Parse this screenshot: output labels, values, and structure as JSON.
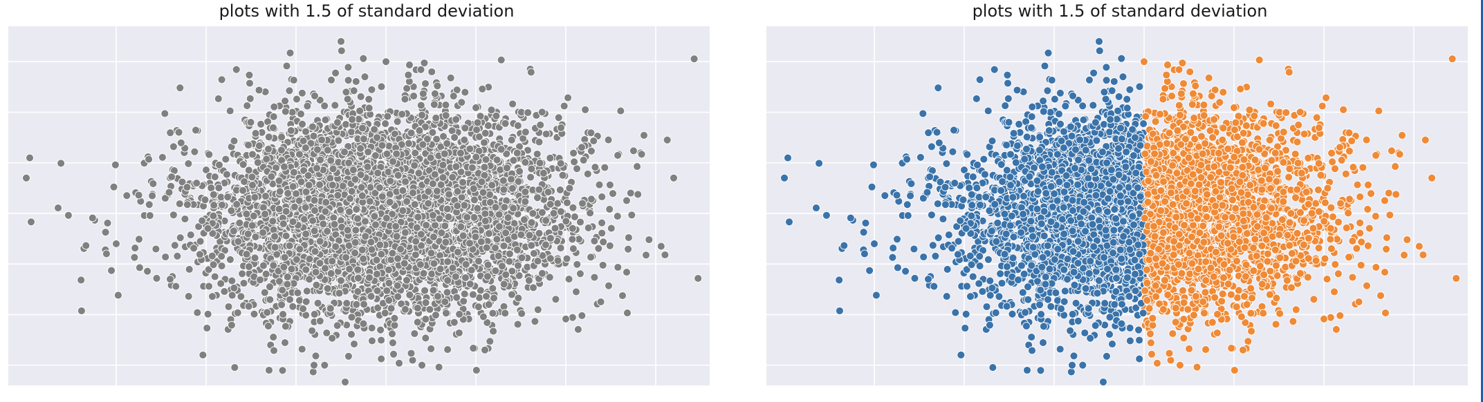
{
  "charts": [
    {
      "title": "plots with 1.5 of standard deviation",
      "colors": {
        "all": "#808080",
        "point_edge": "#ffffff",
        "plot_bg": "#eaeaf2",
        "grid": "#ffffff"
      }
    },
    {
      "title": "plots with 1.5 of standard deviation",
      "colors": {
        "below": "#3a73aa",
        "above": "#ef8a36",
        "point_edge": "#ffffff",
        "plot_bg": "#eaeaf2",
        "grid": "#ffffff"
      }
    }
  ],
  "chart_data": [
    {
      "type": "scatter",
      "title": "plots with 1.5 of standard deviation",
      "xlim": [
        -4.2,
        3.6
      ],
      "ylim": [
        -3.4,
        3.7
      ],
      "x_gridlines": [
        -3,
        -2,
        -1,
        0,
        1,
        2,
        3
      ],
      "y_gridlines": [
        -3,
        -2,
        -1,
        0,
        1,
        2,
        3
      ],
      "grid": true,
      "tick_labels_shown": false,
      "series": [
        {
          "distribution": "bivariate normal, mean 0, sd 1",
          "n_points": 5000,
          "color": "#808080",
          "outliers": [
            {
              "x": -0.5,
              "y": 3.4
            },
            {
              "x": -4.0,
              "y": 0.7
            },
            {
              "x": 3.2,
              "y": 0.7
            },
            {
              "x": 0.0,
              "y": 3.0
            },
            {
              "x": -3.0,
              "y": -0.6
            },
            {
              "x": -2.4,
              "y": -1.3
            },
            {
              "x": -0.8,
              "y": -3.0
            },
            {
              "x": -1.3,
              "y": -3.1
            },
            {
              "x": 1.1,
              "y": -2.7
            },
            {
              "x": 0.4,
              "y": -3.0
            }
          ]
        }
      ]
    },
    {
      "type": "scatter",
      "title": "plots with 1.5 of standard deviation",
      "xlim": [
        -4.2,
        3.6
      ],
      "ylim": [
        -3.4,
        3.7
      ],
      "x_gridlines": [
        -3,
        -2,
        -1,
        0,
        1,
        2,
        3
      ],
      "y_gridlines": [
        -3,
        -2,
        -1,
        0,
        1,
        2,
        3
      ],
      "grid": true,
      "tick_labels_shown": false,
      "split_on": "x",
      "split_value": 0,
      "series": [
        {
          "group": "x < 0",
          "color": "#3a73aa"
        },
        {
          "group": "x >= 0",
          "color": "#ef8a36"
        }
      ]
    }
  ]
}
